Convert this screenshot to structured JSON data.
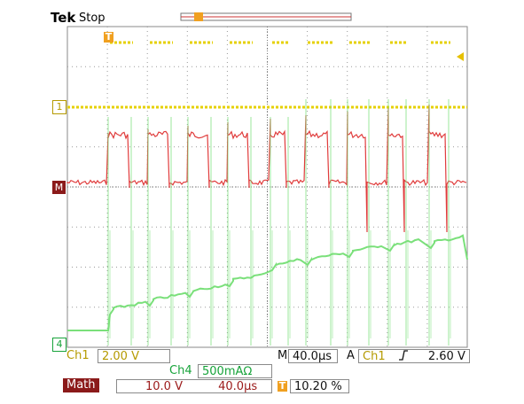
{
  "header": {
    "brand": "Tek",
    "status": "Stop"
  },
  "markers": {
    "ch1": "1",
    "math": "M",
    "ch4": "4",
    "trigger": "T"
  },
  "status_bar": {
    "ch1_label": "Ch1",
    "ch1_scale": "2.00 V",
    "timebase_label": "M",
    "timebase_value": "40.0µs",
    "trig_label": "A",
    "trig_source": "Ch1",
    "trig_slope": "ʃ",
    "trig_level": "2.60 V",
    "ch4_label": "Ch4",
    "ch4_scale": "500mAΩ",
    "math_label": "Math",
    "math_scale": "10.0 V",
    "math_time": "40.0µs",
    "trig_pos_label": "T",
    "trig_pos_value": "10.20 %"
  },
  "colors": {
    "ch1": "#e6d000",
    "math": "#e03c3c",
    "ch4": "#7ae07a",
    "grid": "#9a9a9a",
    "trigger": "#f0a020",
    "math_tag": "#8b1a1a"
  }
}
